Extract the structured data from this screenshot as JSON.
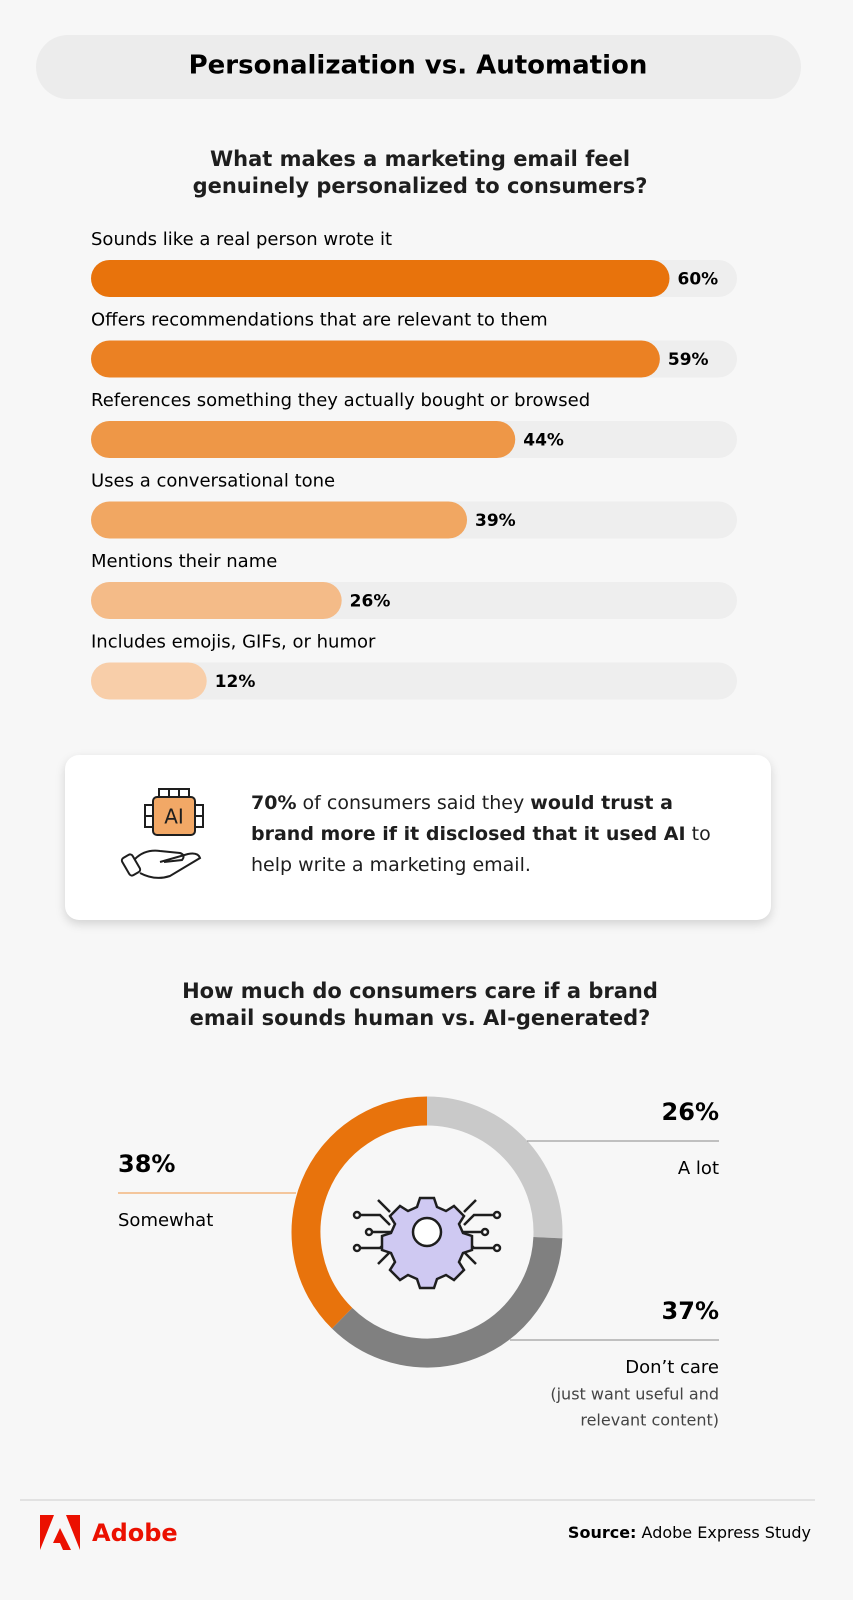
{
  "header": {
    "title": "Personalization vs. Automation"
  },
  "chart_data": [
    {
      "type": "hbar",
      "title": "What makes a marketing email feel genuinely personalized to consumers?",
      "categories": [
        "Sounds like a real person wrote it",
        "Offers recommendations that are relevant to them",
        "References something they actually bought or browsed",
        "Uses a conversational tone",
        "Mentions their name",
        "Includes emojis, GIFs, or humor"
      ],
      "values": [
        60,
        59,
        44,
        39,
        26,
        12
      ],
      "value_labels": [
        "60%",
        "59%",
        "44%",
        "39%",
        "26%",
        "12%"
      ],
      "colors": [
        "#e8730c",
        "#eb8123",
        "#ee9747",
        "#f1a762",
        "#f4bb88",
        "#f8cea9"
      ],
      "xlim": [
        0,
        67
      ]
    },
    {
      "type": "donut",
      "title": "How much do consumers care if a brand email sounds human vs. AI-generated?",
      "categories": [
        "A lot",
        "Don’t care",
        "Somewhat"
      ],
      "values": [
        26,
        37,
        38
      ],
      "value_labels": [
        "26%",
        "37%",
        "38%"
      ],
      "colors": [
        "#c9c9c9",
        "#808080",
        "#e8730c"
      ],
      "annotation": [
        "(just want useful and",
        "relevant content)"
      ]
    }
  ],
  "callout": {
    "icon_label": "AI",
    "parts": [
      "70%",
      " of consumers said they ",
      "would trust a brand more if it disclosed that it used AI",
      " to help write a marketing email."
    ]
  },
  "footer": {
    "logo": "Adobe",
    "source_label": "Source:",
    "source": " Adobe Express Study"
  }
}
